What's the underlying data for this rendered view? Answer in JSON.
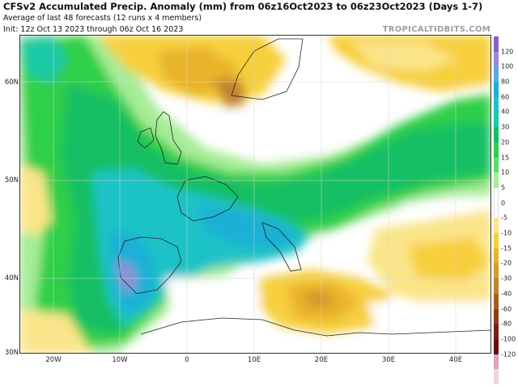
{
  "header": {
    "title": "CFSv2 Accumulated Precip. Anomaly (mm) from 06z16Oct2023 to 06z23Oct2023 (Days 1-7)",
    "subtitle": "Average of last 48 forecasts (12 runs x 4 members)",
    "init": "Init: 12z Oct 13 2023 through 06z Oct 16 2023",
    "brand": "TROPICALTIDBITS.COM"
  },
  "axes": {
    "lat_labels": [
      "60N",
      "50N",
      "40N",
      "30N"
    ],
    "lon_labels": [
      "20W",
      "10W",
      "0",
      "10E",
      "20E",
      "30E",
      "40E"
    ]
  },
  "legend": {
    "labels": [
      "120",
      "100",
      "80",
      "60",
      "40",
      "30",
      "20",
      "15",
      "10",
      "5",
      "0",
      "-5",
      "-10",
      "-15",
      "-20",
      "-30",
      "-40",
      "-60",
      "-80",
      "-100",
      "-120"
    ],
    "colors": [
      "#8f5fc0",
      "#9a8ad6",
      "#5fa8dc",
      "#1ab0d6",
      "#1fc3c6",
      "#1cc9a6",
      "#12bf64",
      "#2fcf4a",
      "#5fdb6a",
      "#a6ec96",
      "#ffffff",
      "#ffffff",
      "#fbe58a",
      "#f7cf3c",
      "#e9b42c",
      "#d79a2a",
      "#c0822f",
      "#a85c22",
      "#8f3c16",
      "#7a1f12",
      "#6a0e0a",
      "#d9a7b4",
      "#ecd5dc"
    ]
  },
  "colors": {
    "wet_strong": "#1ab0d6",
    "wet": "#12bf64",
    "dry": "#e9b42c"
  }
}
